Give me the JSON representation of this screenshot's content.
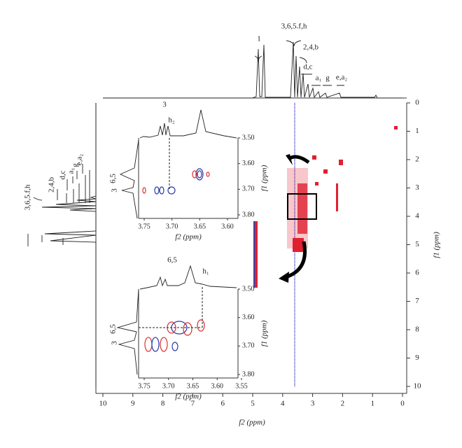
{
  "spectrum_top": {
    "labels": [
      "1",
      "3,6,5.f,h",
      "2,4,b",
      "d,c",
      "a₁",
      "g",
      "e,a₂"
    ]
  },
  "spectrum_left": {
    "labels": [
      "3,6,5.f,h",
      "2,4,b",
      "d,c",
      "a₁",
      "g",
      "e,a₂"
    ]
  },
  "main": {
    "x_label": "f2 (ppm)",
    "y_label": "f1 (ppm)",
    "xticks": [
      10,
      9,
      8,
      7,
      6,
      5,
      4,
      3,
      2,
      1,
      0
    ],
    "yticks": [
      0,
      1,
      2,
      3,
      4,
      5,
      6,
      7,
      8,
      9,
      10
    ]
  },
  "inset_top": {
    "peak_labels": [
      "3",
      "h₂",
      "6,5",
      "3"
    ],
    "x_label": "f2 (ppm)",
    "y_label": "f1 (ppm)",
    "xticks": [
      {
        "value": 3.75,
        "label": "3.75"
      },
      {
        "value": 3.7,
        "label": "3.70"
      },
      {
        "value": 3.65,
        "label": "3.65"
      },
      {
        "value": 3.6,
        "label": "3.60"
      }
    ],
    "yticks": [
      {
        "value": 3.5,
        "label": "3.50"
      },
      {
        "value": 3.6,
        "label": "3.60"
      },
      {
        "value": 3.7,
        "label": "3.70"
      },
      {
        "value": 3.8,
        "label": "3.80"
      }
    ]
  },
  "inset_bottom": {
    "peak_labels": [
      "6,5",
      "h₁",
      "6,5",
      "3"
    ],
    "x_label": "f2 (ppm)",
    "y_label": "f1 (ppm)",
    "xticks": [
      {
        "value": 3.75,
        "label": "3.75"
      },
      {
        "value": 3.7,
        "label": "3.70"
      },
      {
        "value": 3.65,
        "label": "3.65"
      },
      {
        "value": 3.6,
        "label": "3.60"
      },
      {
        "value": 3.55,
        "label": "3.55"
      }
    ],
    "yticks": [
      {
        "value": 3.5,
        "label": "3.50"
      },
      {
        "value": 3.6,
        "label": "3.60"
      },
      {
        "value": 3.7,
        "label": "3.70"
      },
      {
        "value": 3.8,
        "label": "3.80"
      }
    ]
  }
}
